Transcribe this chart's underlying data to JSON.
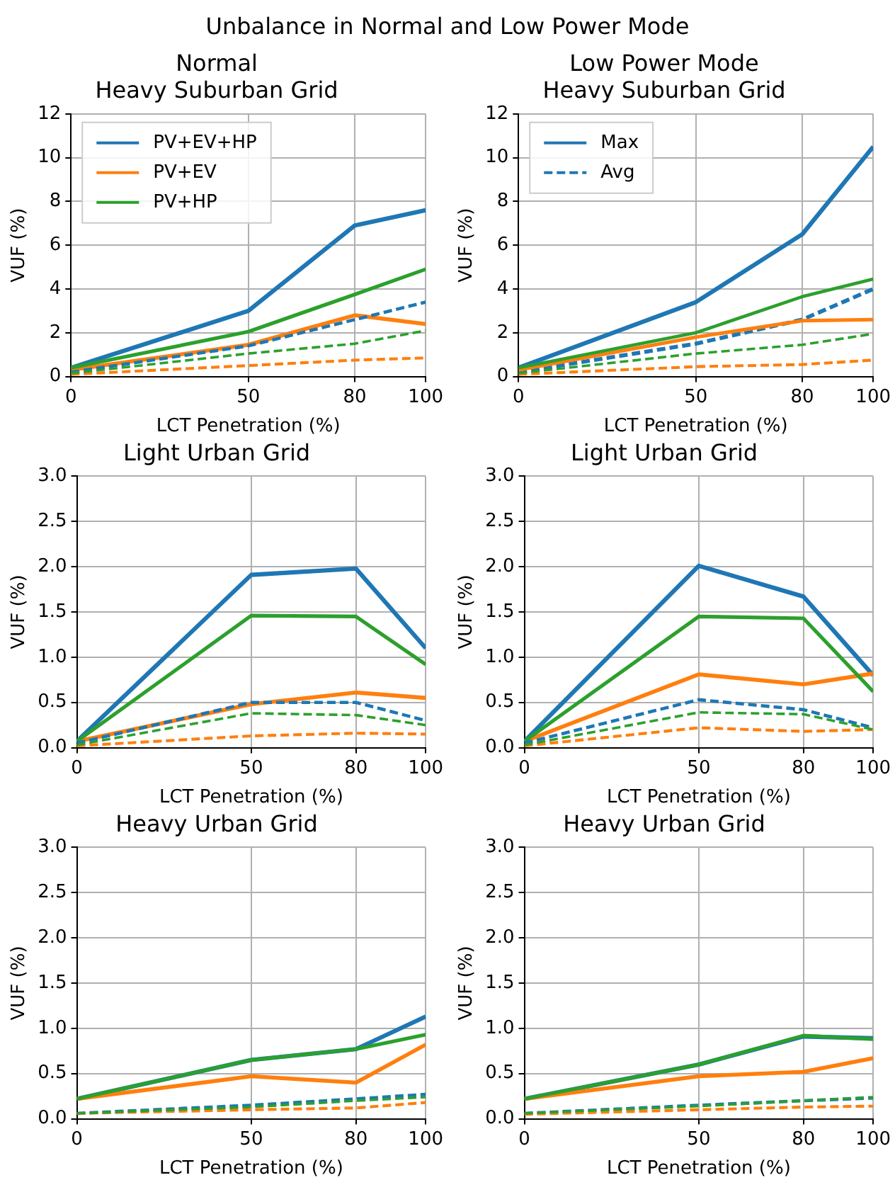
{
  "chart_data": [
    {
      "type": "line",
      "title": "Normal\nHeavy Suburban Grid",
      "annotations": [
        "Unbalance in Normal and Low Power Mode"
      ],
      "xlabel": "LCT Penetration (%)",
      "ylabel": "VUF (%)",
      "x": [
        0,
        50,
        80,
        100
      ],
      "xlim": [
        0,
        100
      ],
      "xticks": [
        0,
        50,
        80,
        100
      ],
      "ylim": [
        0,
        12
      ],
      "yticks": [
        0,
        2,
        4,
        6,
        8,
        10,
        12
      ],
      "grid": true,
      "legend": "top left",
      "series": [
        {
          "name": "PV+EV+HP",
          "color": "#1f77b4",
          "line_style": "solid",
          "values": [
            0.4,
            3.0,
            6.9,
            7.6
          ]
        },
        {
          "name": "PV+EV",
          "color": "#ff7f0e",
          "line_style": "solid",
          "values": [
            0.3,
            1.45,
            2.8,
            2.4
          ]
        },
        {
          "name": "PV+HP",
          "color": "#2ca02c",
          "line_style": "solid",
          "values": [
            0.4,
            2.05,
            3.75,
            4.9
          ]
        },
        {
          "color": "#1f77b4",
          "line_style": "dashed",
          "values": [
            0.2,
            1.4,
            2.6,
            3.4
          ]
        },
        {
          "color": "#ff7f0e",
          "line_style": "dashed",
          "values": [
            0.1,
            0.5,
            0.75,
            0.85
          ]
        },
        {
          "color": "#2ca02c",
          "line_style": "dashed",
          "values": [
            0.15,
            1.05,
            1.5,
            2.1
          ]
        }
      ]
    },
    {
      "type": "line",
      "title": "Low Power Mode\nHeavy Suburban Grid",
      "xlabel": "LCT Penetration (%)",
      "ylabel": "VUF (%)",
      "x": [
        0,
        50,
        80,
        100
      ],
      "xlim": [
        0,
        100
      ],
      "xticks": [
        0,
        50,
        80,
        100
      ],
      "ylim": [
        0,
        12
      ],
      "yticks": [
        0,
        2,
        4,
        6,
        8,
        10,
        12
      ],
      "grid": true,
      "legend": "top left",
      "series": [
        {
          "name": "Max",
          "color": "#1f77b4",
          "line_style": "solid",
          "values": [
            0.4,
            3.4,
            6.5,
            10.5
          ]
        },
        {
          "name": "Avg",
          "color": "#1f77b4",
          "line_style": "dashed",
          "values": [
            0.2,
            1.5,
            2.6,
            4.0
          ]
        },
        {
          "color": "#ff7f0e",
          "line_style": "solid",
          "values": [
            0.3,
            1.8,
            2.55,
            2.6
          ]
        },
        {
          "color": "#2ca02c",
          "line_style": "solid",
          "values": [
            0.4,
            2.0,
            3.65,
            4.45
          ]
        },
        {
          "color": "#ff7f0e",
          "line_style": "dashed",
          "values": [
            0.1,
            0.45,
            0.55,
            0.75
          ]
        },
        {
          "color": "#2ca02c",
          "line_style": "dashed",
          "values": [
            0.15,
            1.05,
            1.45,
            1.95
          ]
        }
      ]
    },
    {
      "type": "line",
      "title": "Light Urban Grid",
      "xlabel": "LCT Penetration (%)",
      "ylabel": "VUF (%)",
      "x": [
        0,
        50,
        80,
        100
      ],
      "xlim": [
        0,
        100
      ],
      "xticks": [
        0,
        50,
        80,
        100
      ],
      "ylim": [
        0,
        3
      ],
      "yticks": [
        {
          "value": 0,
          "label": "0.0"
        },
        0.5,
        {
          "value": 1,
          "label": "1.0"
        },
        1.5,
        {
          "value": 2,
          "label": "2.0"
        },
        2.5,
        {
          "value": 3,
          "label": "3.0"
        }
      ],
      "grid": true,
      "series": [
        {
          "color": "#1f77b4",
          "line_style": "solid",
          "values": [
            0.07,
            1.91,
            1.98,
            1.1
          ]
        },
        {
          "color": "#ff7f0e",
          "line_style": "solid",
          "values": [
            0.07,
            0.48,
            0.61,
            0.55
          ]
        },
        {
          "color": "#2ca02c",
          "line_style": "solid",
          "values": [
            0.07,
            1.46,
            1.45,
            0.92
          ]
        },
        {
          "color": "#1f77b4",
          "line_style": "dashed",
          "values": [
            0.05,
            0.5,
            0.5,
            0.3
          ]
        },
        {
          "color": "#ff7f0e",
          "line_style": "dashed",
          "values": [
            0.02,
            0.13,
            0.16,
            0.15
          ]
        },
        {
          "color": "#2ca02c",
          "line_style": "dashed",
          "values": [
            0.03,
            0.38,
            0.36,
            0.25
          ]
        }
      ]
    },
    {
      "type": "line",
      "title": "Light Urban Grid",
      "xlabel": "LCT Penetration (%)",
      "ylabel": "VUF (%)",
      "x": [
        0,
        50,
        80,
        100
      ],
      "xlim": [
        0,
        100
      ],
      "xticks": [
        0,
        50,
        80,
        100
      ],
      "ylim": [
        0,
        3
      ],
      "yticks": [
        {
          "value": 0,
          "label": "0.0"
        },
        0.5,
        {
          "value": 1,
          "label": "1.0"
        },
        1.5,
        {
          "value": 2,
          "label": "2.0"
        },
        2.5,
        {
          "value": 3,
          "label": "3.0"
        }
      ],
      "grid": true,
      "series": [
        {
          "color": "#1f77b4",
          "line_style": "solid",
          "values": [
            0.07,
            2.01,
            1.67,
            0.8
          ]
        },
        {
          "color": "#ff7f0e",
          "line_style": "solid",
          "values": [
            0.07,
            0.81,
            0.7,
            0.82
          ]
        },
        {
          "color": "#2ca02c",
          "line_style": "solid",
          "values": [
            0.07,
            1.45,
            1.43,
            0.62
          ]
        },
        {
          "color": "#1f77b4",
          "line_style": "dashed",
          "values": [
            0.05,
            0.53,
            0.42,
            0.22
          ]
        },
        {
          "color": "#ff7f0e",
          "line_style": "dashed",
          "values": [
            0.02,
            0.22,
            0.18,
            0.2
          ]
        },
        {
          "color": "#2ca02c",
          "line_style": "dashed",
          "values": [
            0.03,
            0.39,
            0.37,
            0.2
          ]
        }
      ]
    },
    {
      "type": "line",
      "title": "Heavy Urban Grid",
      "xlabel": "LCT Penetration (%)",
      "ylabel": "VUF (%)",
      "x": [
        0,
        50,
        80,
        100
      ],
      "xlim": [
        0,
        100
      ],
      "xticks": [
        0,
        50,
        80,
        100
      ],
      "ylim": [
        0,
        3
      ],
      "yticks": [
        {
          "value": 0,
          "label": "0.0"
        },
        0.5,
        {
          "value": 1,
          "label": "1.0"
        },
        1.5,
        {
          "value": 2,
          "label": "2.0"
        },
        2.5,
        {
          "value": 3,
          "label": "3.0"
        }
      ],
      "grid": true,
      "series": [
        {
          "color": "#1f77b4",
          "line_style": "solid",
          "values": [
            0.22,
            0.65,
            0.77,
            1.13
          ]
        },
        {
          "color": "#ff7f0e",
          "line_style": "solid",
          "values": [
            0.22,
            0.47,
            0.4,
            0.82
          ]
        },
        {
          "color": "#2ca02c",
          "line_style": "solid",
          "values": [
            0.22,
            0.65,
            0.77,
            0.93
          ]
        },
        {
          "color": "#1f77b4",
          "line_style": "dashed",
          "values": [
            0.06,
            0.15,
            0.22,
            0.27
          ]
        },
        {
          "color": "#ff7f0e",
          "line_style": "dashed",
          "values": [
            0.06,
            0.1,
            0.12,
            0.18
          ]
        },
        {
          "color": "#2ca02c",
          "line_style": "dashed",
          "values": [
            0.06,
            0.13,
            0.2,
            0.24
          ]
        }
      ]
    },
    {
      "type": "line",
      "title": "Heavy Urban Grid",
      "xlabel": "LCT Penetration (%)",
      "ylabel": "VUF (%)",
      "x": [
        0,
        50,
        80,
        100
      ],
      "xlim": [
        0,
        100
      ],
      "xticks": [
        0,
        50,
        80,
        100
      ],
      "ylim": [
        0,
        3
      ],
      "yticks": [
        {
          "value": 0,
          "label": "0.0"
        },
        0.5,
        {
          "value": 1,
          "label": "1.0"
        },
        1.5,
        {
          "value": 2,
          "label": "2.0"
        },
        2.5,
        {
          "value": 3,
          "label": "3.0"
        }
      ],
      "grid": true,
      "series": [
        {
          "color": "#1f77b4",
          "line_style": "solid",
          "values": [
            0.22,
            0.6,
            0.91,
            0.89
          ]
        },
        {
          "color": "#ff7f0e",
          "line_style": "solid",
          "values": [
            0.22,
            0.47,
            0.52,
            0.67
          ]
        },
        {
          "color": "#2ca02c",
          "line_style": "solid",
          "values": [
            0.22,
            0.6,
            0.92,
            0.88
          ]
        },
        {
          "color": "#1f77b4",
          "line_style": "dashed",
          "values": [
            0.06,
            0.15,
            0.2,
            0.23
          ]
        },
        {
          "color": "#ff7f0e",
          "line_style": "dashed",
          "values": [
            0.05,
            0.1,
            0.13,
            0.14
          ]
        },
        {
          "color": "#2ca02c",
          "line_style": "dashed",
          "values": [
            0.06,
            0.14,
            0.2,
            0.24
          ]
        }
      ]
    }
  ]
}
